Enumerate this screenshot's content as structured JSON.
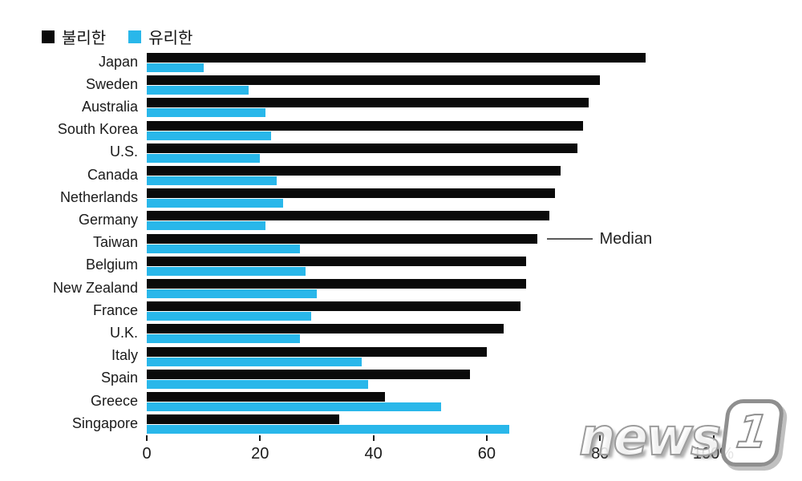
{
  "legend": {
    "items": [
      {
        "label": "불리한",
        "color": "#0a0a0a"
      },
      {
        "label": "유리한",
        "color": "#29b7ea"
      }
    ]
  },
  "chart_data": {
    "type": "bar",
    "orientation": "horizontal",
    "title": "",
    "xlabel": "",
    "ylabel": "",
    "unit": "%",
    "xlim": [
      0,
      100
    ],
    "x_ticks": [
      0,
      20,
      40,
      60,
      80,
      100
    ],
    "x_tick_labels": [
      "0",
      "20",
      "40",
      "60",
      "80",
      "100%"
    ],
    "grid": false,
    "legend_position": "top-left",
    "categories": [
      "Japan",
      "Sweden",
      "Australia",
      "South Korea",
      "U.S.",
      "Canada",
      "Netherlands",
      "Germany",
      "Taiwan",
      "Belgium",
      "New Zealand",
      "France",
      "U.K.",
      "Italy",
      "Spain",
      "Greece",
      "Singapore"
    ],
    "series": [
      {
        "name": "불리한",
        "color": "#0a0a0a",
        "values": [
          88,
          80,
          78,
          77,
          76,
          73,
          72,
          71,
          69,
          67,
          67,
          66,
          63,
          60,
          57,
          42,
          34
        ]
      },
      {
        "name": "유리한",
        "color": "#29b7ea",
        "values": [
          10,
          18,
          21,
          22,
          20,
          23,
          24,
          21,
          27,
          28,
          30,
          29,
          27,
          38,
          39,
          52,
          64
        ]
      }
    ],
    "annotation": {
      "label": "Median",
      "category": "Taiwan",
      "series": "불리한",
      "value": 69
    }
  },
  "watermark": {
    "word": "news",
    "badge_digit": "1"
  }
}
